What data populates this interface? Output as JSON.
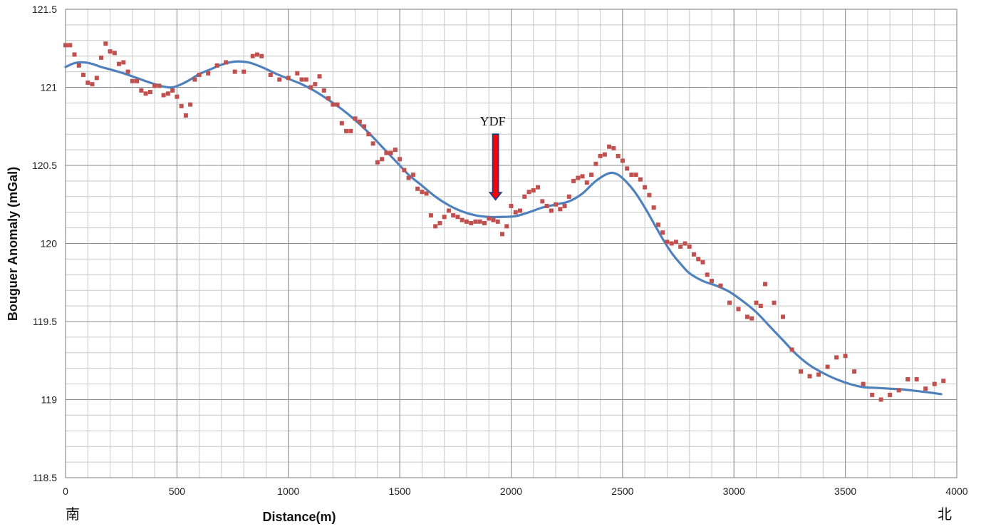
{
  "chart_data": {
    "type": "scatter",
    "title": "",
    "xlabel": "Distance(m)",
    "ylabel": "Bouguer Anomaly (mGal)",
    "xlim": [
      0,
      4000
    ],
    "ylim": [
      118.5,
      121.5
    ],
    "xticks": [
      0,
      500,
      1000,
      1500,
      2000,
      2500,
      3000,
      3500,
      4000
    ],
    "yticks": [
      118.5,
      119,
      119.5,
      120,
      120.5,
      121,
      121.5
    ],
    "xtick_labels": [
      "0",
      "500",
      "1000",
      "1500",
      "2000",
      "2500",
      "3000",
      "3500",
      "4000"
    ],
    "ytick_labels": [
      "118.5",
      "119",
      "119.5",
      "120",
      "120.5",
      "121",
      "121.5"
    ],
    "grid": true,
    "minor_grid": true,
    "legend": "none",
    "colors": {
      "observed": "#c0504d",
      "fitted": "#4f81bd",
      "arrow_fill": "#ff0000",
      "arrow_edge": "#1f3d8a"
    },
    "corner_labels": {
      "left": "南",
      "right": "北"
    },
    "annotation": {
      "text": "YDF",
      "x": 1930,
      "y_top": 120.7,
      "y_tip": 120.28
    },
    "series": [
      {
        "kind": "scatter",
        "x": [
          0,
          20,
          40,
          60,
          80,
          100,
          120,
          140,
          160,
          180,
          200,
          220,
          240,
          260,
          280,
          300,
          320,
          340,
          360,
          380,
          400,
          420,
          440,
          460,
          480,
          500,
          520,
          540,
          560,
          580,
          600,
          640,
          680,
          720,
          760,
          800,
          840,
          860,
          880,
          920,
          960,
          1000,
          1040,
          1060,
          1080,
          1100,
          1120,
          1140,
          1160,
          1180,
          1200,
          1220,
          1240,
          1260,
          1280,
          1300,
          1320,
          1340,
          1360,
          1380,
          1400,
          1420,
          1440,
          1460,
          1480,
          1500,
          1520,
          1540,
          1560,
          1580,
          1600,
          1620,
          1640,
          1660,
          1680,
          1700,
          1720,
          1740,
          1760,
          1780,
          1800,
          1820,
          1840,
          1860,
          1880,
          1900,
          1920,
          1940,
          1960,
          1980,
          2000,
          2020,
          2040,
          2060,
          2080,
          2100,
          2120,
          2140,
          2160,
          2180,
          2200,
          2220,
          2240,
          2260,
          2280,
          2300,
          2320,
          2340,
          2360,
          2380,
          2400,
          2420,
          2440,
          2460,
          2480,
          2500,
          2520,
          2540,
          2560,
          2580,
          2600,
          2620,
          2640,
          2660,
          2680,
          2700,
          2720,
          2740,
          2760,
          2780,
          2800,
          2820,
          2840,
          2860,
          2880,
          2900,
          2940,
          2980,
          3020,
          3060,
          3080,
          3100,
          3120,
          3140,
          3180,
          3220,
          3260,
          3300,
          3340,
          3380,
          3420,
          3460,
          3500,
          3540,
          3580,
          3620,
          3660,
          3700,
          3740,
          3780,
          3820,
          3860,
          3900,
          3940
        ],
        "y": [
          121.27,
          121.27,
          121.21,
          121.14,
          121.08,
          121.03,
          121.02,
          121.06,
          121.19,
          121.28,
          121.23,
          121.22,
          121.15,
          121.16,
          121.1,
          121.04,
          121.04,
          120.98,
          120.96,
          120.97,
          121.01,
          121.01,
          120.95,
          120.96,
          120.98,
          120.94,
          120.88,
          120.82,
          120.89,
          121.05,
          121.08,
          121.09,
          121.14,
          121.16,
          121.1,
          121.1,
          121.2,
          121.21,
          121.2,
          121.08,
          121.05,
          121.06,
          121.09,
          121.05,
          121.05,
          121.0,
          121.02,
          121.07,
          120.98,
          120.93,
          120.89,
          120.89,
          120.77,
          120.72,
          120.72,
          120.8,
          120.78,
          120.75,
          120.7,
          120.64,
          120.52,
          120.54,
          120.58,
          120.58,
          120.6,
          120.54,
          120.47,
          120.42,
          120.44,
          120.35,
          120.33,
          120.32,
          120.18,
          120.11,
          120.13,
          120.17,
          120.21,
          120.18,
          120.17,
          120.15,
          120.14,
          120.13,
          120.14,
          120.14,
          120.13,
          120.16,
          120.15,
          120.14,
          120.06,
          120.11,
          120.24,
          120.2,
          120.21,
          120.3,
          120.33,
          120.34,
          120.36,
          120.27,
          120.24,
          120.21,
          120.25,
          120.22,
          120.24,
          120.3,
          120.4,
          120.42,
          120.43,
          120.39,
          120.44,
          120.51,
          120.56,
          120.57,
          120.62,
          120.61,
          120.56,
          120.53,
          120.48,
          120.44,
          120.44,
          120.41,
          120.36,
          120.31,
          120.23,
          120.12,
          120.07,
          120.01,
          120.0,
          120.01,
          119.98,
          120.0,
          119.98,
          119.93,
          119.9,
          119.88,
          119.8,
          119.76,
          119.73,
          119.62,
          119.58,
          119.53,
          119.52,
          119.62,
          119.6,
          119.74,
          119.62,
          119.53,
          119.32,
          119.18,
          119.15,
          119.16,
          119.21,
          119.27,
          119.28,
          119.18,
          119.1,
          119.03,
          119.0,
          119.03,
          119.06,
          119.13,
          119.13,
          119.07,
          119.1,
          119.12
        ]
      },
      {
        "kind": "line",
        "x": [
          0,
          40,
          80,
          120,
          160,
          200,
          260,
          320,
          380,
          440,
          480,
          520,
          560,
          600,
          650,
          700,
          760,
          820,
          880,
          940,
          1000,
          1060,
          1120,
          1180,
          1240,
          1300,
          1360,
          1420,
          1480,
          1540,
          1600,
          1660,
          1720,
          1780,
          1840,
          1900,
          1960,
          2020,
          2080,
          2140,
          2200,
          2260,
          2320,
          2380,
          2440,
          2480,
          2520,
          2560,
          2600,
          2640,
          2680,
          2720,
          2760,
          2800,
          2860,
          2920,
          2980,
          3040,
          3100,
          3160,
          3220,
          3280,
          3340,
          3400,
          3460,
          3520,
          3580,
          3640,
          3700,
          3760,
          3820,
          3880,
          3930
        ],
        "y": [
          121.13,
          121.155,
          121.16,
          121.15,
          121.13,
          121.115,
          121.09,
          121.06,
          121.03,
          121.005,
          121.0,
          121.02,
          121.05,
          121.085,
          121.115,
          121.145,
          121.165,
          121.16,
          121.13,
          121.09,
          121.055,
          121.02,
          120.975,
          120.92,
          120.86,
          120.79,
          120.71,
          120.62,
          120.53,
          120.44,
          120.37,
          120.3,
          120.245,
          120.205,
          120.18,
          120.17,
          120.17,
          120.175,
          120.2,
          120.23,
          120.25,
          120.27,
          120.32,
          120.4,
          120.45,
          120.44,
          120.39,
          120.32,
          120.23,
          120.13,
          120.03,
          119.94,
          119.87,
          119.81,
          119.76,
          119.73,
          119.69,
          119.63,
          119.56,
          119.47,
          119.38,
          119.29,
          119.22,
          119.17,
          119.13,
          119.1,
          119.08,
          119.075,
          119.07,
          119.065,
          119.055,
          119.045,
          119.035
        ]
      }
    ]
  }
}
